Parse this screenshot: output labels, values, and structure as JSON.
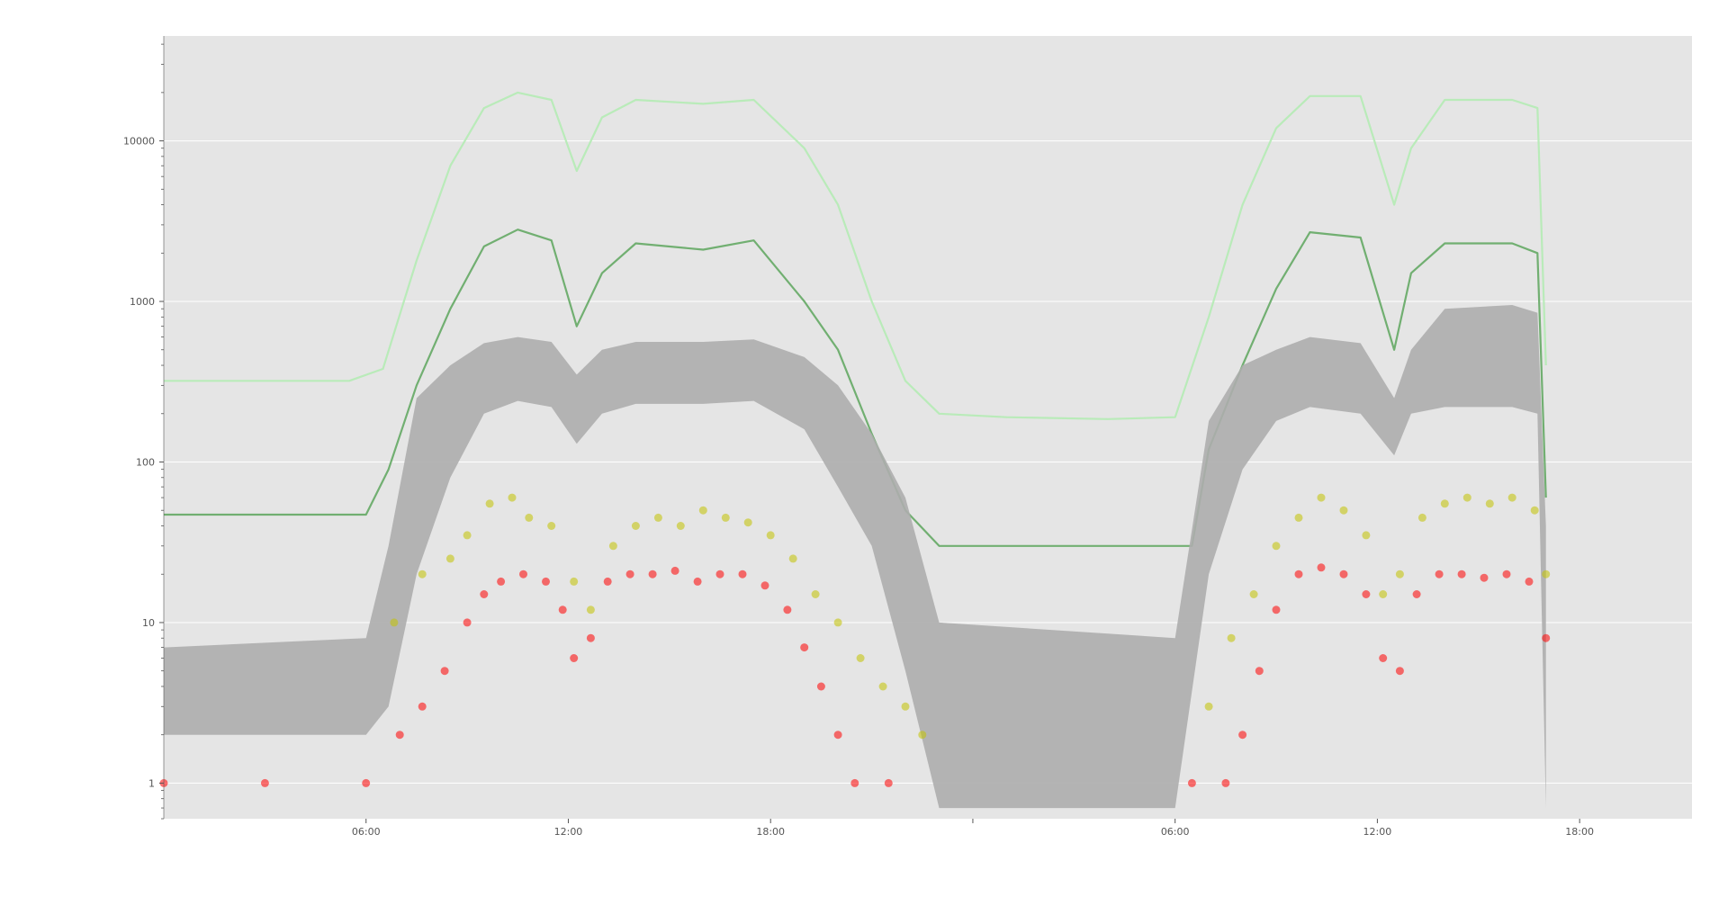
{
  "chart_data": {
    "type": "line",
    "title": "",
    "xlabel": "",
    "ylabel": "",
    "yscale": "log",
    "ylim": [
      0.6,
      45000
    ],
    "xlim": [
      "2019-01-01T00:00",
      "2019-01-02T21:20"
    ],
    "xtick_labels": [
      "06:00",
      "12:00",
      "18:00",
      "",
      "06:00",
      "12:00",
      "18:00"
    ],
    "xticks": [
      "2019-01-01T06:00",
      "2019-01-01T12:00",
      "2019-01-01T18:00",
      "2019-01-02T00:00",
      "2019-01-02T06:00",
      "2019-01-02T12:00",
      "2019-01-02T18:00"
    ],
    "ytick_labels": [
      "1",
      "10",
      "100",
      "1000",
      "10000"
    ],
    "yticks": [
      1,
      10,
      100,
      1000,
      10000
    ],
    "grid": true,
    "legend": "none",
    "background": "#e5e5e5",
    "series": [
      {
        "kind": "line",
        "color": "#b6ebb6",
        "points": [
          [
            "2019-01-01T00:00",
            320
          ],
          [
            "2019-01-01T05:30",
            320
          ],
          [
            "2019-01-01T06:30",
            380
          ],
          [
            "2019-01-01T07:30",
            1800
          ],
          [
            "2019-01-01T08:30",
            7000
          ],
          [
            "2019-01-01T09:30",
            16000
          ],
          [
            "2019-01-01T10:30",
            20000
          ],
          [
            "2019-01-01T11:30",
            18000
          ],
          [
            "2019-01-01T12:15",
            6500
          ],
          [
            "2019-01-01T13:00",
            14000
          ],
          [
            "2019-01-01T14:00",
            18000
          ],
          [
            "2019-01-01T16:00",
            17000
          ],
          [
            "2019-01-01T17:30",
            18000
          ],
          [
            "2019-01-01T19:00",
            9000
          ],
          [
            "2019-01-01T20:00",
            4000
          ],
          [
            "2019-01-01T21:00",
            1000
          ],
          [
            "2019-01-01T22:00",
            320
          ],
          [
            "2019-01-01T23:00",
            200
          ],
          [
            "2019-01-02T01:00",
            190
          ],
          [
            "2019-01-02T04:00",
            185
          ],
          [
            "2019-01-02T06:00",
            190
          ],
          [
            "2019-01-02T07:00",
            800
          ],
          [
            "2019-01-02T08:00",
            4000
          ],
          [
            "2019-01-02T09:00",
            12000
          ],
          [
            "2019-01-02T10:00",
            19000
          ],
          [
            "2019-01-02T11:30",
            19000
          ],
          [
            "2019-01-02T12:30",
            4000
          ],
          [
            "2019-01-02T13:00",
            9000
          ],
          [
            "2019-01-02T14:00",
            18000
          ],
          [
            "2019-01-02T16:00",
            18000
          ],
          [
            "2019-01-02T16:45",
            16000
          ],
          [
            "2019-01-02T17:00",
            400
          ]
        ]
      },
      {
        "kind": "line",
        "color": "#6aac6a",
        "points": [
          [
            "2019-01-01T00:00",
            47
          ],
          [
            "2019-01-01T06:00",
            47
          ],
          [
            "2019-01-01T06:40",
            90
          ],
          [
            "2019-01-01T07:30",
            300
          ],
          [
            "2019-01-01T08:30",
            900
          ],
          [
            "2019-01-01T09:30",
            2200
          ],
          [
            "2019-01-01T10:30",
            2800
          ],
          [
            "2019-01-01T11:30",
            2400
          ],
          [
            "2019-01-01T12:15",
            700
          ],
          [
            "2019-01-01T13:00",
            1500
          ],
          [
            "2019-01-01T14:00",
            2300
          ],
          [
            "2019-01-01T16:00",
            2100
          ],
          [
            "2019-01-01T17:30",
            2400
          ],
          [
            "2019-01-01T19:00",
            1000
          ],
          [
            "2019-01-01T20:00",
            500
          ],
          [
            "2019-01-01T21:00",
            150
          ],
          [
            "2019-01-01T22:00",
            50
          ],
          [
            "2019-01-01T23:00",
            30
          ],
          [
            "2019-01-02T06:30",
            30
          ],
          [
            "2019-01-02T07:00",
            120
          ],
          [
            "2019-01-02T08:00",
            400
          ],
          [
            "2019-01-02T09:00",
            1200
          ],
          [
            "2019-01-02T10:00",
            2700
          ],
          [
            "2019-01-02T11:30",
            2500
          ],
          [
            "2019-01-02T12:30",
            500
          ],
          [
            "2019-01-02T13:00",
            1500
          ],
          [
            "2019-01-02T14:00",
            2300
          ],
          [
            "2019-01-02T16:00",
            2300
          ],
          [
            "2019-01-02T16:45",
            2000
          ],
          [
            "2019-01-02T17:00",
            60
          ]
        ]
      },
      {
        "kind": "band",
        "color": "#adadad",
        "points": [
          [
            "2019-01-01T00:00",
            2,
            7
          ],
          [
            "2019-01-01T06:00",
            2,
            8
          ],
          [
            "2019-01-01T06:40",
            3,
            30
          ],
          [
            "2019-01-01T07:30",
            20,
            250
          ],
          [
            "2019-01-01T08:30",
            80,
            400
          ],
          [
            "2019-01-01T09:30",
            200,
            550
          ],
          [
            "2019-01-01T10:30",
            240,
            600
          ],
          [
            "2019-01-01T11:30",
            220,
            560
          ],
          [
            "2019-01-01T12:15",
            130,
            350
          ],
          [
            "2019-01-01T13:00",
            200,
            500
          ],
          [
            "2019-01-01T14:00",
            230,
            560
          ],
          [
            "2019-01-01T16:00",
            230,
            560
          ],
          [
            "2019-01-01T17:30",
            240,
            580
          ],
          [
            "2019-01-01T19:00",
            160,
            450
          ],
          [
            "2019-01-01T20:00",
            70,
            300
          ],
          [
            "2019-01-01T21:00",
            30,
            150
          ],
          [
            "2019-01-01T22:00",
            5,
            60
          ],
          [
            "2019-01-01T23:00",
            0.7,
            10
          ],
          [
            "2019-01-02T06:00",
            0.7,
            8
          ],
          [
            "2019-01-02T07:00",
            20,
            180
          ],
          [
            "2019-01-02T08:00",
            90,
            400
          ],
          [
            "2019-01-02T09:00",
            180,
            500
          ],
          [
            "2019-01-02T10:00",
            220,
            600
          ],
          [
            "2019-01-02T11:30",
            200,
            550
          ],
          [
            "2019-01-02T12:30",
            110,
            250
          ],
          [
            "2019-01-02T13:00",
            200,
            500
          ],
          [
            "2019-01-02T14:00",
            220,
            900
          ],
          [
            "2019-01-02T16:00",
            220,
            950
          ],
          [
            "2019-01-02T16:45",
            200,
            850
          ],
          [
            "2019-01-02T17:00",
            0.7,
            40
          ]
        ]
      },
      {
        "kind": "scatter",
        "color": "#c3c300",
        "points": [
          [
            "2019-01-01T06:50",
            10
          ],
          [
            "2019-01-01T07:40",
            20
          ],
          [
            "2019-01-01T08:30",
            25
          ],
          [
            "2019-01-01T09:00",
            35
          ],
          [
            "2019-01-01T09:40",
            55
          ],
          [
            "2019-01-01T10:20",
            60
          ],
          [
            "2019-01-01T10:50",
            45
          ],
          [
            "2019-01-01T11:30",
            40
          ],
          [
            "2019-01-01T12:10",
            18
          ],
          [
            "2019-01-01T12:40",
            12
          ],
          [
            "2019-01-01T13:20",
            30
          ],
          [
            "2019-01-01T14:00",
            40
          ],
          [
            "2019-01-01T14:40",
            45
          ],
          [
            "2019-01-01T15:20",
            40
          ],
          [
            "2019-01-01T16:00",
            50
          ],
          [
            "2019-01-01T16:40",
            45
          ],
          [
            "2019-01-01T17:20",
            42
          ],
          [
            "2019-01-01T18:00",
            35
          ],
          [
            "2019-01-01T18:40",
            25
          ],
          [
            "2019-01-01T19:20",
            15
          ],
          [
            "2019-01-01T20:00",
            10
          ],
          [
            "2019-01-01T20:40",
            6
          ],
          [
            "2019-01-01T21:20",
            4
          ],
          [
            "2019-01-01T22:00",
            3
          ],
          [
            "2019-01-01T22:30",
            2
          ],
          [
            "2019-01-02T07:00",
            3
          ],
          [
            "2019-01-02T07:40",
            8
          ],
          [
            "2019-01-02T08:20",
            15
          ],
          [
            "2019-01-02T09:00",
            30
          ],
          [
            "2019-01-02T09:40",
            45
          ],
          [
            "2019-01-02T10:20",
            60
          ],
          [
            "2019-01-02T11:00",
            50
          ],
          [
            "2019-01-02T11:40",
            35
          ],
          [
            "2019-01-02T12:10",
            15
          ],
          [
            "2019-01-02T12:40",
            20
          ],
          [
            "2019-01-02T13:20",
            45
          ],
          [
            "2019-01-02T14:00",
            55
          ],
          [
            "2019-01-02T14:40",
            60
          ],
          [
            "2019-01-02T15:20",
            55
          ],
          [
            "2019-01-02T16:00",
            60
          ],
          [
            "2019-01-02T16:40",
            50
          ],
          [
            "2019-01-02T17:00",
            20
          ]
        ]
      },
      {
        "kind": "scatter",
        "color": "#ff0000",
        "points": [
          [
            "2019-01-01T00:00",
            1
          ],
          [
            "2019-01-01T03:00",
            1
          ],
          [
            "2019-01-01T06:00",
            1
          ],
          [
            "2019-01-01T07:00",
            2
          ],
          [
            "2019-01-01T07:40",
            3
          ],
          [
            "2019-01-01T08:20",
            5
          ],
          [
            "2019-01-01T09:00",
            10
          ],
          [
            "2019-01-01T09:30",
            15
          ],
          [
            "2019-01-01T10:00",
            18
          ],
          [
            "2019-01-01T10:40",
            20
          ],
          [
            "2019-01-01T11:20",
            18
          ],
          [
            "2019-01-01T11:50",
            12
          ],
          [
            "2019-01-01T12:10",
            6
          ],
          [
            "2019-01-01T12:40",
            8
          ],
          [
            "2019-01-01T13:10",
            18
          ],
          [
            "2019-01-01T13:50",
            20
          ],
          [
            "2019-01-01T14:30",
            20
          ],
          [
            "2019-01-01T15:10",
            21
          ],
          [
            "2019-01-01T15:50",
            18
          ],
          [
            "2019-01-01T16:30",
            20
          ],
          [
            "2019-01-01T17:10",
            20
          ],
          [
            "2019-01-01T17:50",
            17
          ],
          [
            "2019-01-01T18:30",
            12
          ],
          [
            "2019-01-01T19:00",
            7
          ],
          [
            "2019-01-01T19:30",
            4
          ],
          [
            "2019-01-01T20:00",
            2
          ],
          [
            "2019-01-01T20:30",
            1
          ],
          [
            "2019-01-01T21:30",
            1
          ],
          [
            "2019-01-02T06:30",
            1
          ],
          [
            "2019-01-02T07:30",
            1
          ],
          [
            "2019-01-02T08:00",
            2
          ],
          [
            "2019-01-02T08:30",
            5
          ],
          [
            "2019-01-02T09:00",
            12
          ],
          [
            "2019-01-02T09:40",
            20
          ],
          [
            "2019-01-02T10:20",
            22
          ],
          [
            "2019-01-02T11:00",
            20
          ],
          [
            "2019-01-02T11:40",
            15
          ],
          [
            "2019-01-02T12:10",
            6
          ],
          [
            "2019-01-02T12:40",
            5
          ],
          [
            "2019-01-02T13:10",
            15
          ],
          [
            "2019-01-02T13:50",
            20
          ],
          [
            "2019-01-02T14:30",
            20
          ],
          [
            "2019-01-02T15:10",
            19
          ],
          [
            "2019-01-02T15:50",
            20
          ],
          [
            "2019-01-02T16:30",
            18
          ],
          [
            "2019-01-02T17:00",
            8
          ]
        ]
      }
    ]
  }
}
